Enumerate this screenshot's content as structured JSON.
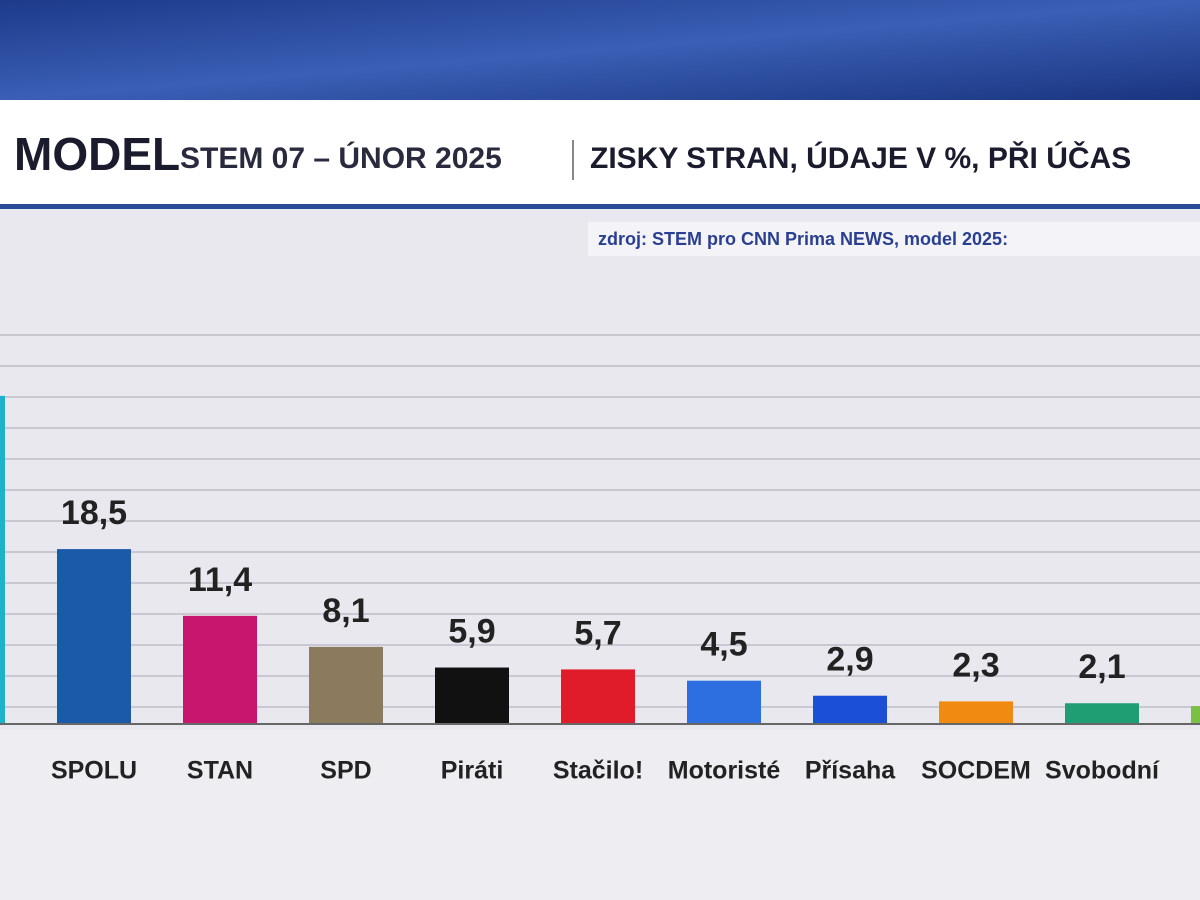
{
  "chart_data": {
    "type": "bar",
    "title": "MODEL",
    "subtitle": "STEM 07 – ÚNOR 2025",
    "description": "ZISKY STRAN, ÚDAJE V %, PŘI ÚČAS",
    "source": "zdroj: STEM pro CNN Prima NEWS, model 2025:",
    "categories": [
      null,
      "SPOLU",
      "STAN",
      "SPD",
      "Piráti",
      "Stačilo!",
      "Motoristé",
      "Přísaha",
      "SOCDEM",
      "Svobodní",
      null
    ],
    "values": [
      34.8,
      18.5,
      11.4,
      8.1,
      5.9,
      5.7,
      4.5,
      2.9,
      2.3,
      2.1,
      1.8
    ],
    "value_labels": [
      null,
      "18,5",
      "11,4",
      "8,1",
      "5,9",
      "5,7",
      "4,5",
      "2,9",
      "2,3",
      "2,1",
      null
    ],
    "colors": [
      "#1cb3c9",
      "#1a5aa8",
      "#c8166e",
      "#8b7a5e",
      "#111111",
      "#e01b2a",
      "#2d6fe0",
      "#1a4fd6",
      "#f08a10",
      "#1e9e72",
      "#7ac143"
    ]
  }
}
